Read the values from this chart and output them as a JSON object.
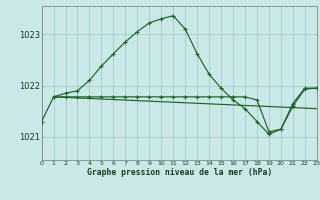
{
  "title": "Graphe pression niveau de la mer (hPa)",
  "bg": "#cbe8e8",
  "grid_color": "#a0cccc",
  "line_color": "#1a6620",
  "xlim": [
    0,
    23
  ],
  "ylim": [
    1020.55,
    1023.55
  ],
  "ytick_vals": [
    1021,
    1022,
    1023
  ],
  "xtick_vals": [
    0,
    1,
    2,
    3,
    4,
    5,
    6,
    7,
    8,
    9,
    10,
    11,
    12,
    13,
    14,
    15,
    16,
    17,
    18,
    19,
    20,
    21,
    22,
    23
  ],
  "curve1_x": [
    0,
    1,
    2,
    3,
    4,
    5,
    6,
    7,
    8,
    9,
    10,
    11,
    12,
    13,
    14,
    15,
    16,
    17,
    18,
    19,
    20,
    21,
    22,
    23
  ],
  "curve1_y": [
    1021.3,
    1021.78,
    1021.85,
    1021.9,
    1022.1,
    1022.38,
    1022.62,
    1022.85,
    1023.05,
    1023.22,
    1023.3,
    1023.36,
    1023.1,
    1022.62,
    1022.22,
    1021.95,
    1021.72,
    1021.55,
    1021.3,
    1021.05,
    1021.15,
    1021.6,
    1021.93,
    1021.95
  ],
  "curve2_x": [
    1,
    2,
    3,
    4,
    5,
    6,
    7,
    8,
    9,
    10,
    11,
    12,
    13,
    14,
    15,
    16,
    17,
    18,
    19,
    20,
    21,
    22,
    23
  ],
  "curve2_y": [
    1021.78,
    1021.78,
    1021.78,
    1021.78,
    1021.78,
    1021.78,
    1021.78,
    1021.78,
    1021.78,
    1021.78,
    1021.78,
    1021.78,
    1021.78,
    1021.78,
    1021.78,
    1021.78,
    1021.78,
    1021.72,
    1021.1,
    1021.15,
    1021.65,
    1021.95,
    1021.95
  ],
  "line3_x": [
    1,
    23
  ],
  "line3_y": [
    1021.78,
    1021.55
  ]
}
